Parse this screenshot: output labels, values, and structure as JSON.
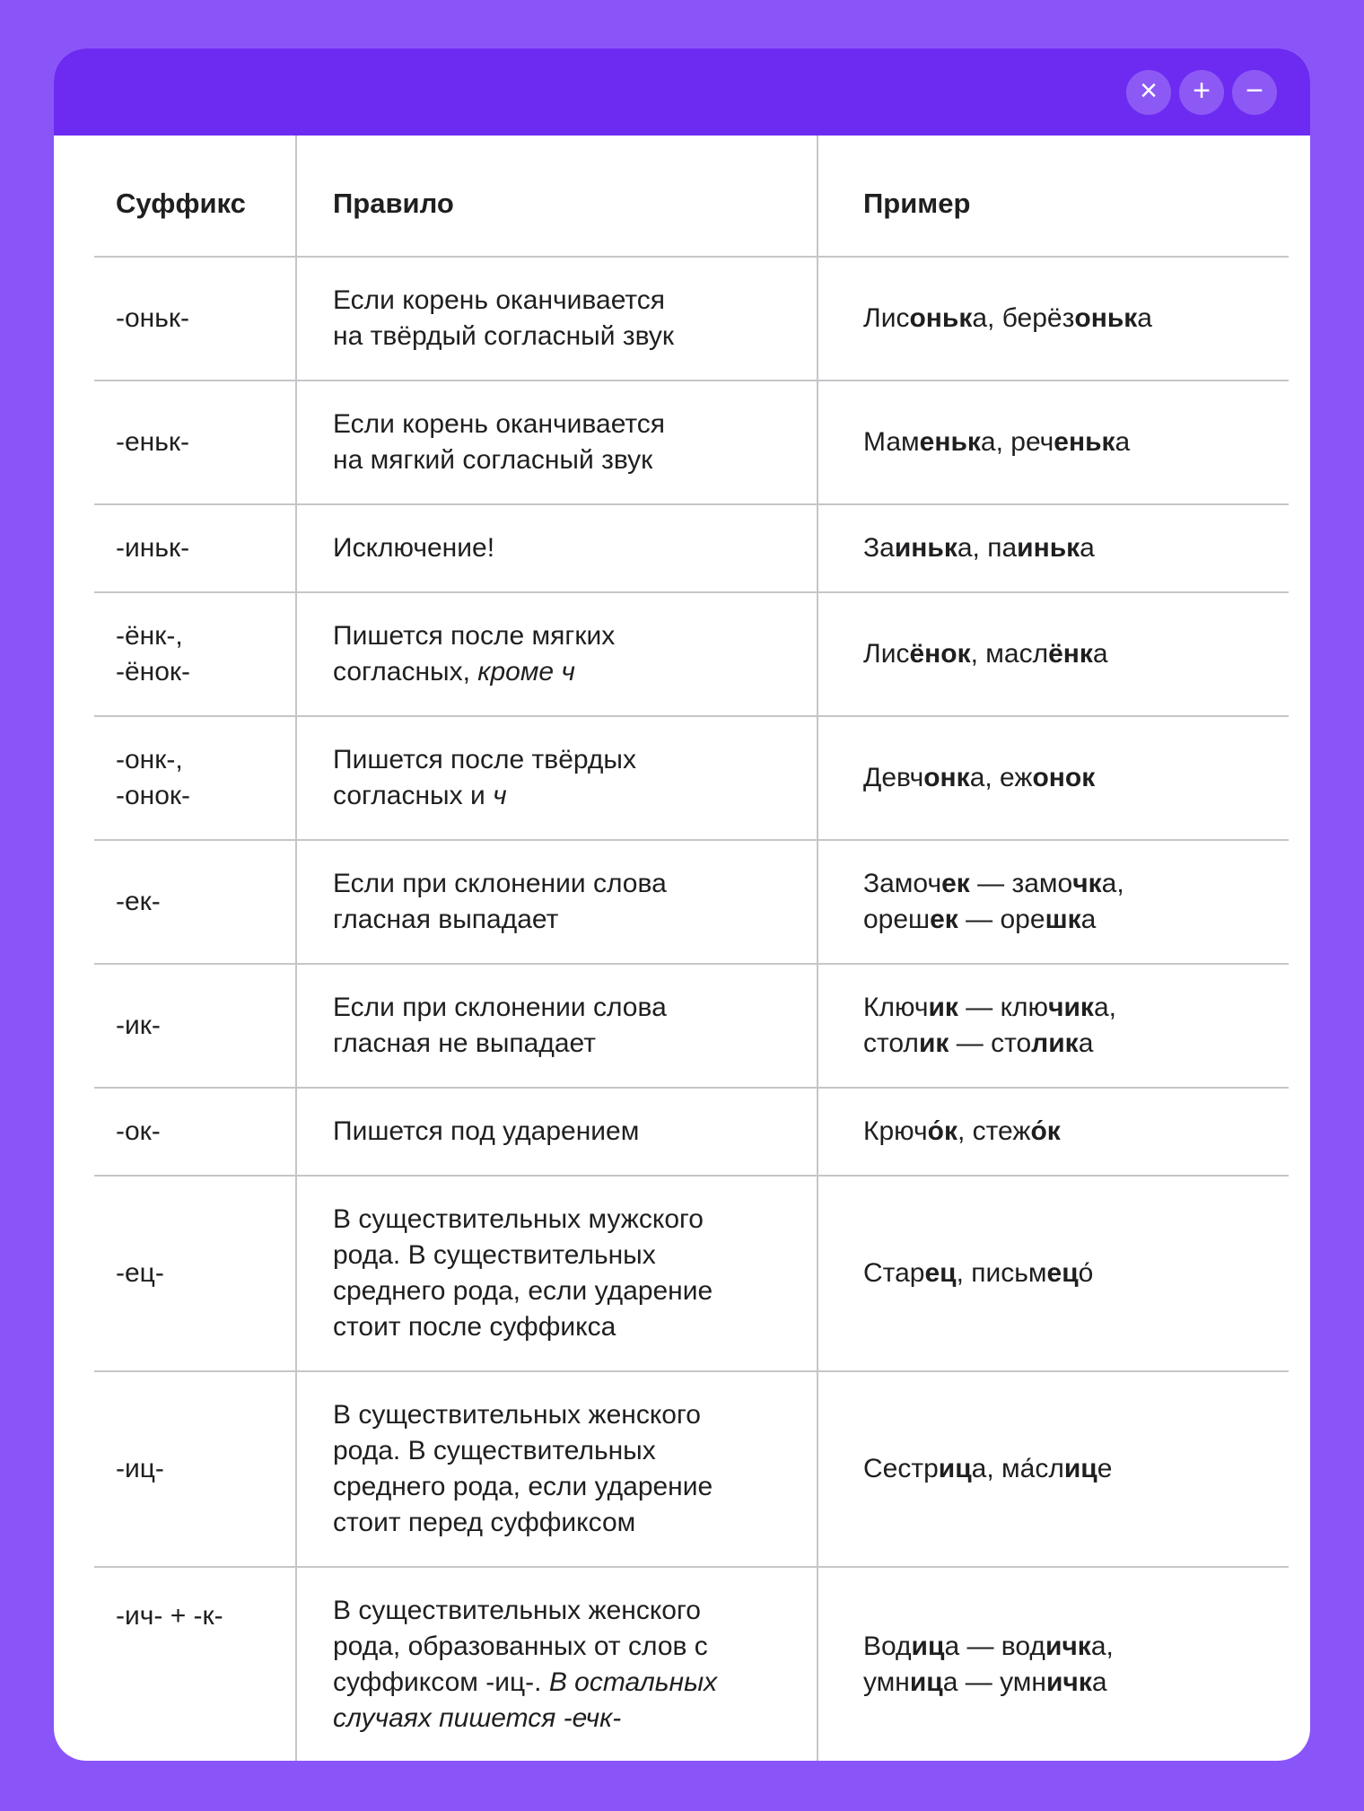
{
  "colors": {
    "page_bg": "#8a55f8",
    "titlebar_bg": "#6d2bf2",
    "divider": "#c4c6c8",
    "text": "#1f1f21"
  },
  "window": {
    "controls": [
      {
        "name": "close",
        "glyph": "×"
      },
      {
        "name": "zoom-in",
        "glyph": "+"
      },
      {
        "name": "minimize",
        "glyph": "−"
      }
    ]
  },
  "table": {
    "headers": [
      "Суффикс",
      "Правило",
      "Пример"
    ],
    "rows": [
      {
        "suffix": [
          "-оньк-"
        ],
        "rule": [
          {
            "t": "Если корень оканчивается"
          },
          {
            "br": 1
          },
          {
            "t": "на твёрдый согласный звук"
          }
        ],
        "example": [
          {
            "t": "Лис"
          },
          {
            "t": "оньк",
            "b": 1
          },
          {
            "t": "а, берёз"
          },
          {
            "t": "оньк",
            "b": 1
          },
          {
            "t": "а"
          }
        ]
      },
      {
        "suffix": [
          "-еньк-"
        ],
        "rule": [
          {
            "t": "Если корень оканчивается"
          },
          {
            "br": 1
          },
          {
            "t": "на мягкий согласный звук"
          }
        ],
        "example": [
          {
            "t": "Мам"
          },
          {
            "t": "еньк",
            "b": 1
          },
          {
            "t": "а, реч"
          },
          {
            "t": "еньк",
            "b": 1
          },
          {
            "t": "а"
          }
        ]
      },
      {
        "suffix": [
          "-иньк-"
        ],
        "rule": [
          {
            "t": "Исключение!"
          }
        ],
        "example": [
          {
            "t": "За"
          },
          {
            "t": "иньк",
            "b": 1
          },
          {
            "t": "а, па"
          },
          {
            "t": "иньк",
            "b": 1
          },
          {
            "t": "а"
          }
        ]
      },
      {
        "suffix": [
          "-ёнк-,",
          "-ёнок-"
        ],
        "rule": [
          {
            "t": "Пишется после мягких"
          },
          {
            "br": 1
          },
          {
            "t": "согласных, "
          },
          {
            "t": "кроме ч",
            "i": 1
          }
        ],
        "example": [
          {
            "t": "Лис"
          },
          {
            "t": "ёнок",
            "b": 1
          },
          {
            "t": ", масл"
          },
          {
            "t": "ёнк",
            "b": 1
          },
          {
            "t": "а"
          }
        ]
      },
      {
        "suffix": [
          "-онк-,",
          "-онок-"
        ],
        "rule": [
          {
            "t": "Пишется после твёрдых"
          },
          {
            "br": 1
          },
          {
            "t": "согласных и "
          },
          {
            "t": "ч",
            "i": 1
          }
        ],
        "example": [
          {
            "t": "Девч"
          },
          {
            "t": "онк",
            "b": 1
          },
          {
            "t": "а, еж"
          },
          {
            "t": "онок",
            "b": 1
          }
        ]
      },
      {
        "suffix": [
          "-ек-"
        ],
        "rule": [
          {
            "t": "Если при склонении слова"
          },
          {
            "br": 1
          },
          {
            "t": "гласная выпадает"
          }
        ],
        "example": [
          {
            "t": "Замоч"
          },
          {
            "t": "ек",
            "b": 1
          },
          {
            "t": " — замо"
          },
          {
            "t": "чк",
            "b": 1
          },
          {
            "t": "а,"
          },
          {
            "br": 1
          },
          {
            "t": "ореш"
          },
          {
            "t": "ек",
            "b": 1
          },
          {
            "t": " — оре"
          },
          {
            "t": "шк",
            "b": 1
          },
          {
            "t": "а"
          }
        ]
      },
      {
        "suffix": [
          "-ик-"
        ],
        "rule": [
          {
            "t": "Если при склонении слова"
          },
          {
            "br": 1
          },
          {
            "t": "гласная не выпадает"
          }
        ],
        "example": [
          {
            "t": "Ключ"
          },
          {
            "t": "ик",
            "b": 1
          },
          {
            "t": " — клю"
          },
          {
            "t": "чик",
            "b": 1
          },
          {
            "t": "а,"
          },
          {
            "br": 1
          },
          {
            "t": "стол"
          },
          {
            "t": "ик",
            "b": 1
          },
          {
            "t": " — сто"
          },
          {
            "t": "лик",
            "b": 1
          },
          {
            "t": "а"
          }
        ]
      },
      {
        "suffix": [
          "-ок-"
        ],
        "rule": [
          {
            "t": "Пишется под ударением"
          }
        ],
        "example": [
          {
            "t": "Крюч"
          },
          {
            "t": "о́к",
            "b": 1
          },
          {
            "t": ", стеж"
          },
          {
            "t": "о́к",
            "b": 1
          }
        ]
      },
      {
        "suffix": [
          "-ец-"
        ],
        "rule": [
          {
            "t": "В существительных мужского"
          },
          {
            "br": 1
          },
          {
            "t": "рода. В существительных"
          },
          {
            "br": 1
          },
          {
            "t": "среднего рода, если ударение"
          },
          {
            "br": 1
          },
          {
            "t": "стоит после суффикса"
          }
        ],
        "example": [
          {
            "t": "Стар"
          },
          {
            "t": "ец",
            "b": 1
          },
          {
            "t": ", письм"
          },
          {
            "t": "ец",
            "b": 1
          },
          {
            "t": "о́"
          }
        ]
      },
      {
        "suffix": [
          "-иц-"
        ],
        "rule": [
          {
            "t": "В существительных женского"
          },
          {
            "br": 1
          },
          {
            "t": "рода. В существительных"
          },
          {
            "br": 1
          },
          {
            "t": "среднего рода, если ударение"
          },
          {
            "br": 1
          },
          {
            "t": "стоит перед суффиксом"
          }
        ],
        "example": [
          {
            "t": "Сестр"
          },
          {
            "t": "иц",
            "b": 1
          },
          {
            "t": "а, ма́сл"
          },
          {
            "t": "иц",
            "b": 1
          },
          {
            "t": "е"
          }
        ]
      },
      {
        "suffix": [
          "-ич- + -к-"
        ],
        "suffix_align": "top",
        "rule": [
          {
            "t": "В существительных женского"
          },
          {
            "br": 1
          },
          {
            "t": "рода, образованных от слов с"
          },
          {
            "br": 1
          },
          {
            "t": "суффиксом -иц-. "
          },
          {
            "t": "В остальных",
            "i": 1
          },
          {
            "br": 1
          },
          {
            "t": "случаях пишется -ечк-",
            "i": 1
          }
        ],
        "example": [
          {
            "t": "Вод"
          },
          {
            "t": "иц",
            "b": 1
          },
          {
            "t": "а — вод"
          },
          {
            "t": "ичк",
            "b": 1
          },
          {
            "t": "а,"
          },
          {
            "br": 1
          },
          {
            "t": "умн"
          },
          {
            "t": "иц",
            "b": 1
          },
          {
            "t": "а — умн"
          },
          {
            "t": "ичк",
            "b": 1
          },
          {
            "t": "а"
          }
        ]
      }
    ]
  }
}
